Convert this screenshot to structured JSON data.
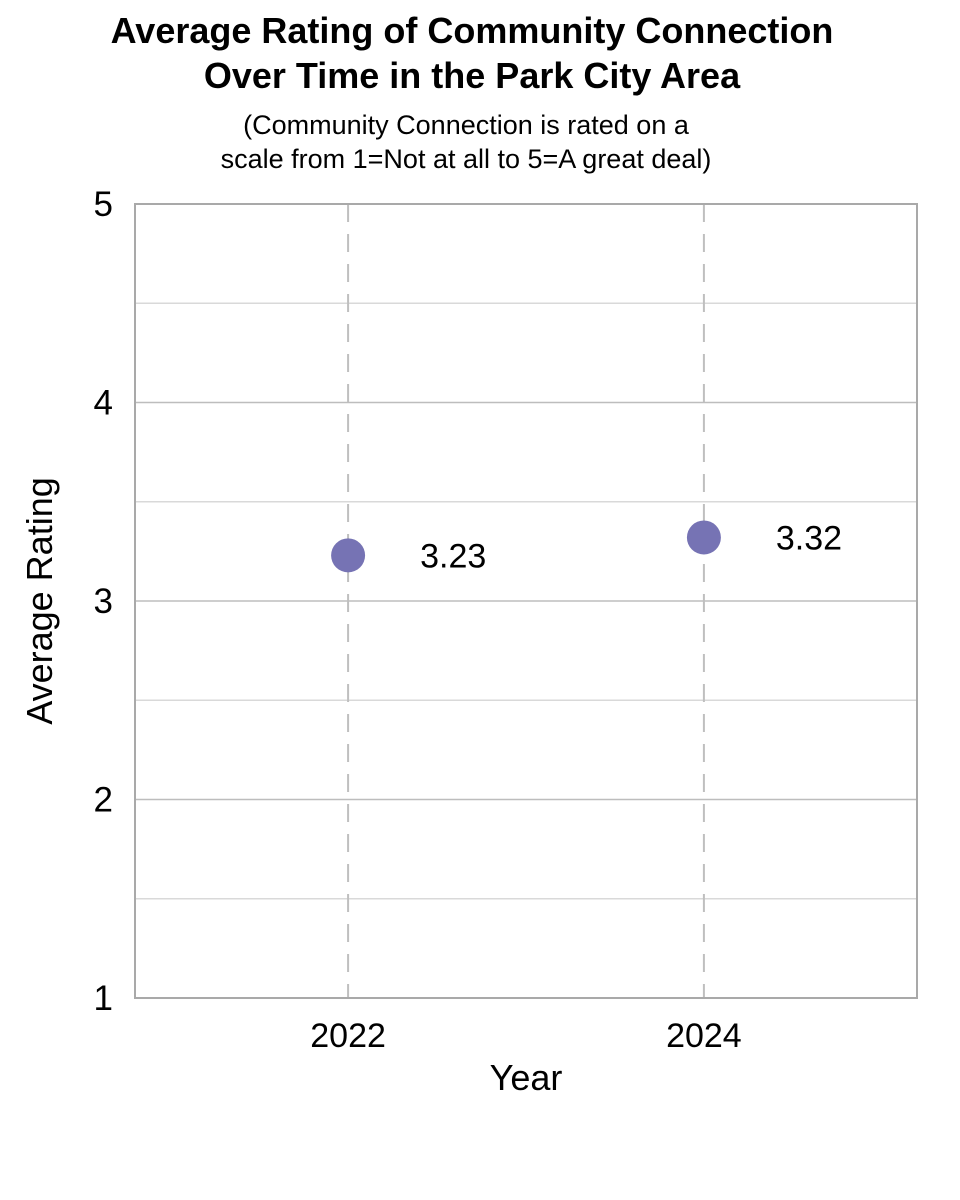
{
  "figure": {
    "title_lines": [
      "Average Rating of Community Connection",
      "Over Time in the Park City Area"
    ],
    "subtitle_lines": [
      "(Community Connection is rated on a",
      "scale from 1=Not at all to 5=A great deal)"
    ]
  },
  "chart_data": {
    "type": "scatter",
    "title": "Average Rating of Community Connection Over Time in the Park City Area",
    "subtitle": "(Community Connection is rated on a scale from 1=Not at all to 5=A great deal)",
    "xlabel": "Year",
    "ylabel": "Average Rating",
    "x": [
      "2022",
      "2024"
    ],
    "y": [
      3.23,
      3.32
    ],
    "point_labels": [
      "3.23",
      "3.32"
    ],
    "ylim": [
      1,
      5
    ],
    "yticks": [
      5,
      4,
      3,
      2,
      1
    ],
    "y_minor_grid_interval": 0.5,
    "grid": {
      "y_major": true,
      "y_minor": true,
      "x_dashed_at_points": true
    },
    "legend": "none",
    "colors": {
      "marker": "#7673B4",
      "plot_border": "#A9A9A9",
      "grid_major": "#BDBDBD",
      "grid_minor": "#D9D9D9",
      "dashed_line": "#BFBFBF",
      "text": "#000000",
      "background": "#FFFFFF"
    }
  }
}
